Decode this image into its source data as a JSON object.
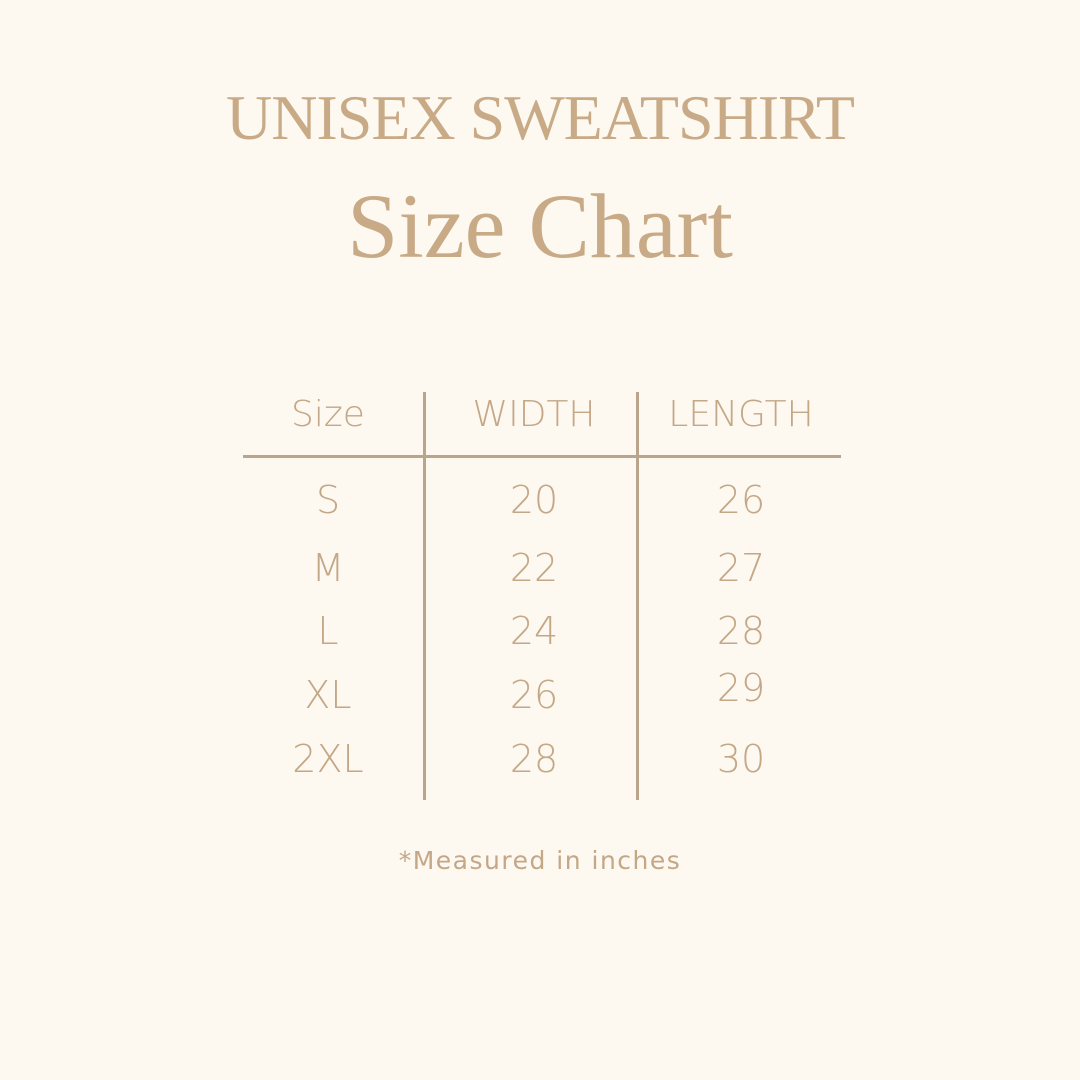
{
  "title": {
    "line1": "UNISEX SWEATSHIRT",
    "line2": "Size Chart"
  },
  "table": {
    "headers": [
      "Size",
      "WIDTH",
      "LENGTH"
    ],
    "rows": [
      [
        "S",
        "20",
        "26"
      ],
      [
        "M",
        "22",
        "27"
      ],
      [
        "L",
        "24",
        "28"
      ],
      [
        "XL",
        "26",
        "29"
      ],
      [
        "2XL",
        "28",
        "30"
      ]
    ]
  },
  "footnote": "*Measured in inches",
  "colors": {
    "background": "#fdf8f0",
    "text": "#c4a786",
    "lines": "#bba48c"
  }
}
